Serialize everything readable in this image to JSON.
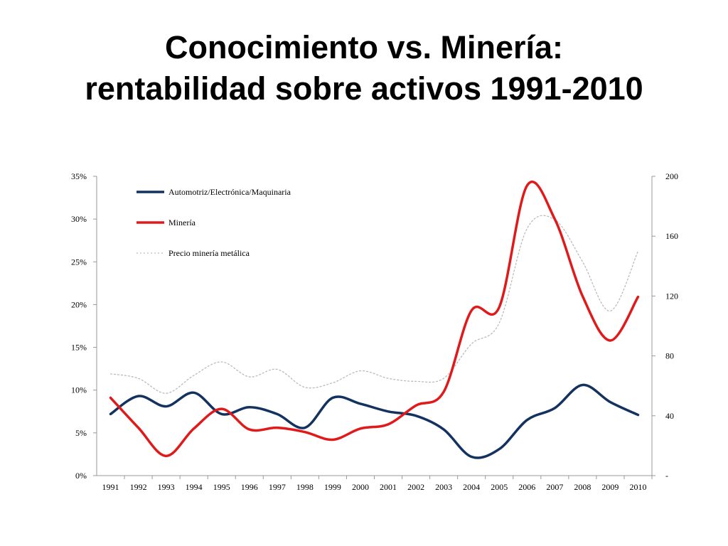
{
  "slide": {
    "title_line1": "Conocimiento vs. Minería:",
    "title_line2": "rentabilidad sobre activos 1991-2010"
  },
  "chart_data": {
    "type": "line",
    "x": [
      "1991",
      "1992",
      "1993",
      "1994",
      "1995",
      "1996",
      "1997",
      "1998",
      "1999",
      "2000",
      "2001",
      "2002",
      "2003",
      "2004",
      "2005",
      "2006",
      "2007",
      "2008",
      "2009",
      "2010"
    ],
    "y_left": {
      "ylim": [
        0,
        35
      ],
      "ticks": [
        "0%",
        "5%",
        "10%",
        "15%",
        "20%",
        "25%",
        "30%",
        "35%"
      ]
    },
    "y_right": {
      "ylim": [
        0,
        200
      ],
      "ticks": [
        "-",
        "40",
        "80",
        "120",
        "160",
        "200"
      ]
    },
    "grid": false,
    "legend": "top-left",
    "series": [
      {
        "name": "Automotriz/Electrónica/Maquinaria",
        "axis": "left",
        "color": "#13325f",
        "style": "solid",
        "values": [
          7.2,
          9.3,
          8.1,
          9.7,
          7.2,
          8.0,
          7.2,
          5.6,
          9.1,
          8.4,
          7.5,
          7.0,
          5.4,
          2.2,
          3.1,
          6.5,
          7.9,
          10.6,
          8.6,
          7.1
        ]
      },
      {
        "name": "Minería",
        "axis": "left",
        "color": "#e01a1a",
        "style": "solid",
        "values": [
          9.1,
          5.6,
          2.3,
          5.5,
          7.8,
          5.4,
          5.6,
          5.1,
          4.2,
          5.5,
          6.0,
          8.2,
          9.8,
          19.3,
          19.7,
          33.9,
          30.0,
          21.0,
          15.8,
          20.9
        ]
      },
      {
        "name": "Precio minería metálica",
        "axis": "right",
        "color": "#bbbbbb",
        "style": "dotted",
        "values": [
          68,
          65,
          55,
          67,
          76,
          66,
          71,
          59,
          62,
          70,
          65,
          63,
          65,
          88,
          102,
          165,
          171,
          143,
          110,
          150
        ]
      }
    ]
  }
}
